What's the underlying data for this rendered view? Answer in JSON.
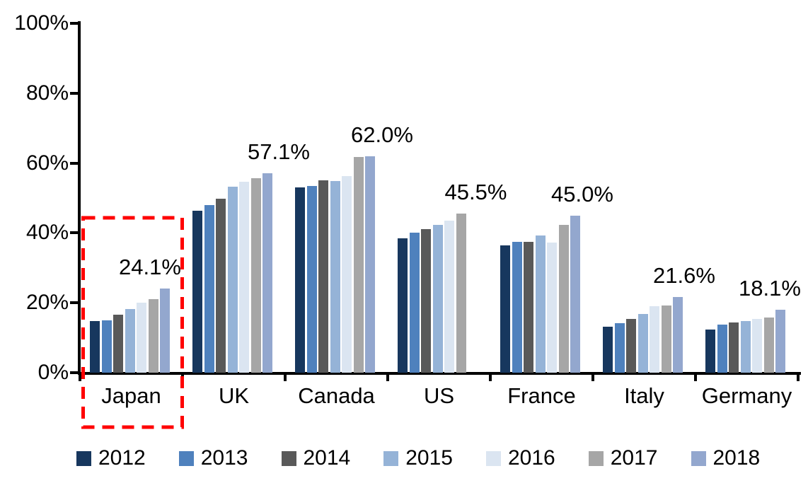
{
  "chart_data": {
    "type": "bar",
    "title": "",
    "categories": [
      "Japan",
      "UK",
      "Canada",
      "US",
      "France",
      "Italy",
      "Germany"
    ],
    "series": [
      {
        "name": "2012",
        "color": "#17375E",
        "values": [
          14.8,
          46.3,
          53.0,
          38.4,
          36.5,
          13.2,
          12.4
        ]
      },
      {
        "name": "2013",
        "color": "#4F81BD",
        "values": [
          15.0,
          47.9,
          53.5,
          40.1,
          37.5,
          14.1,
          13.8
        ]
      },
      {
        "name": "2014",
        "color": "#595959",
        "values": [
          16.5,
          49.8,
          55.0,
          41.0,
          37.5,
          15.3,
          14.3
        ]
      },
      {
        "name": "2015",
        "color": "#95B3D7",
        "values": [
          18.2,
          53.2,
          54.8,
          42.3,
          39.2,
          16.8,
          14.8
        ]
      },
      {
        "name": "2016",
        "color": "#DBE5F1",
        "values": [
          20.0,
          54.6,
          56.3,
          43.6,
          37.3,
          19.0,
          15.4
        ]
      },
      {
        "name": "2017",
        "color": "#A6A6A6",
        "values": [
          21.1,
          55.7,
          61.7,
          45.5,
          42.3,
          19.3,
          15.8
        ]
      },
      {
        "name": "2018",
        "color": "#93A7CE",
        "values": [
          24.1,
          57.1,
          62.0,
          null,
          45.0,
          21.6,
          18.1
        ]
      }
    ],
    "data_labels": [
      {
        "category": "Japan",
        "text": "24.1%"
      },
      {
        "category": "UK",
        "text": "57.1%"
      },
      {
        "category": "Canada",
        "text": "62.0%"
      },
      {
        "category": "US",
        "text": "45.5%"
      },
      {
        "category": "France",
        "text": "45.0%"
      },
      {
        "category": "Italy",
        "text": "21.6%"
      },
      {
        "category": "Germany",
        "text": "18.1%"
      }
    ],
    "yticks": [
      "0%",
      "20%",
      "40%",
      "60%",
      "80%",
      "100%"
    ],
    "ylim": [
      0,
      100
    ],
    "legend_position": "bottom",
    "grid": false,
    "axis_color": "#000000",
    "highlight": {
      "category": "Japan",
      "style": "red-dashed-box",
      "color": "#FF0000"
    }
  }
}
